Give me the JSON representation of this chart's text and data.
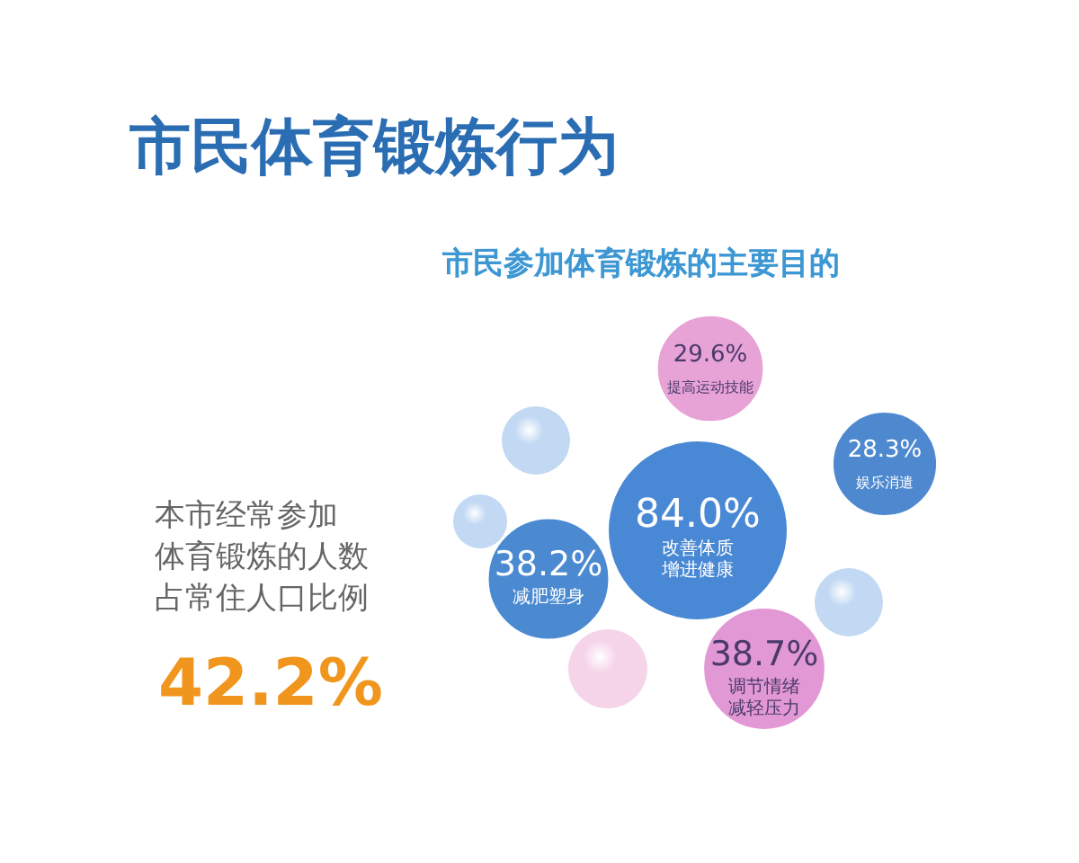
{
  "chart_data": {
    "type": "other",
    "title": "市民体育锻炼行为",
    "subtitle": "市民参加体育锻炼的主要目的",
    "categories": [
      "提高运动技能",
      "娱乐消遣",
      "改善体质增进健康",
      "减肥塑身",
      "调节情绪减轻压力"
    ],
    "values": [
      29.6,
      28.3,
      84.0,
      38.2,
      38.7
    ],
    "colors": [
      "#e59ad2",
      "#3f7fcc",
      "#3a7ed0",
      "#3c80cc",
      "#e08fd0"
    ],
    "value_labels": [
      "29.6%",
      "28.3%",
      "84.0%",
      "38.2%",
      "38.7%"
    ],
    "annotations": [
      "本市经常参加体育锻炼的人数占常住人口比例",
      "42.2%"
    ]
  }
}
